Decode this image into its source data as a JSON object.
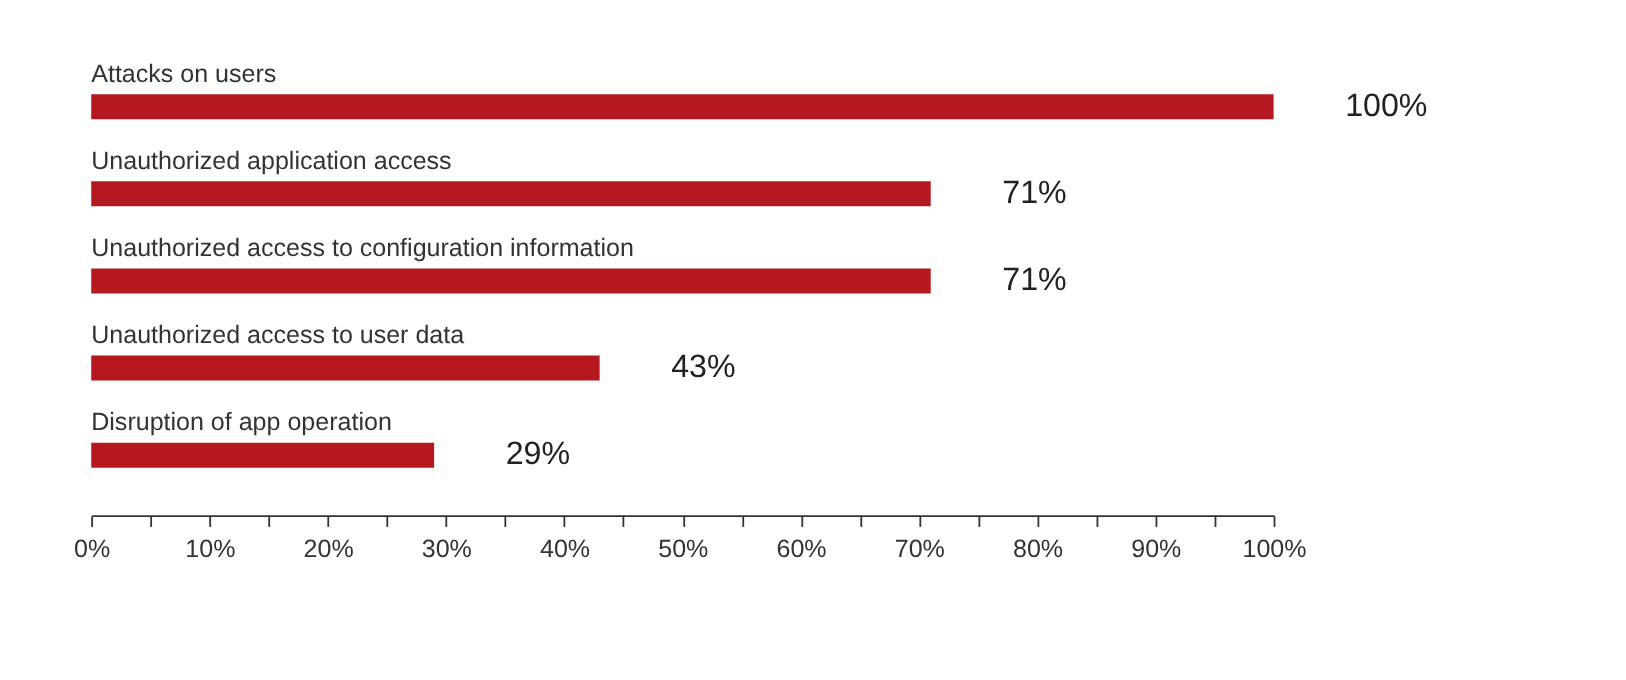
{
  "chart_data": {
    "type": "bar",
    "orientation": "horizontal",
    "categories": [
      "Attacks on users",
      "Unauthorized application access",
      "Unauthorized access to configuration information",
      "Unauthorized access to user data",
      "Disruption of app operation"
    ],
    "values": [
      100,
      71,
      71,
      43,
      29
    ],
    "value_labels": [
      "100%",
      "71%",
      "71%",
      "43%",
      "29%"
    ],
    "color": "#b5191f",
    "xlim": [
      0,
      100
    ],
    "xticks": [
      {
        "value": 0,
        "label": "0%"
      },
      {
        "value": 5,
        "label": null
      },
      {
        "value": 10,
        "label": "10%"
      },
      {
        "value": 15,
        "label": null
      },
      {
        "value": 20,
        "label": "20%"
      },
      {
        "value": 25,
        "label": null
      },
      {
        "value": 30,
        "label": "30%"
      },
      {
        "value": 35,
        "label": null
      },
      {
        "value": 40,
        "label": "40%"
      },
      {
        "value": 45,
        "label": null
      },
      {
        "value": 50,
        "label": "50%"
      },
      {
        "value": 55,
        "label": null
      },
      {
        "value": 60,
        "label": "60%"
      },
      {
        "value": 65,
        "label": null
      },
      {
        "value": 70,
        "label": "70%"
      },
      {
        "value": 75,
        "label": null
      },
      {
        "value": 80,
        "label": "80%"
      },
      {
        "value": 85,
        "label": null
      },
      {
        "value": 90,
        "label": "90%"
      },
      {
        "value": 95,
        "label": null
      },
      {
        "value": 100,
        "label": "100%"
      }
    ],
    "grid": false
  }
}
